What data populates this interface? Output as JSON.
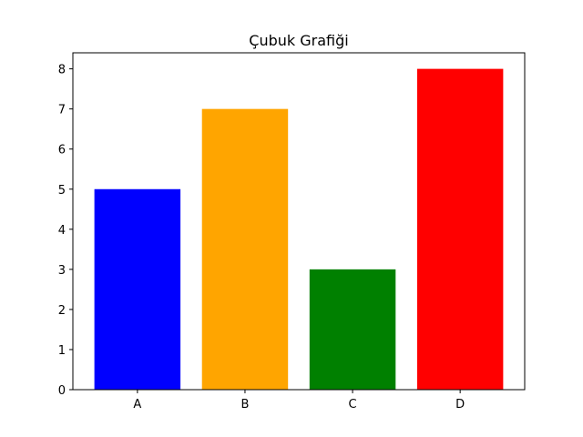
{
  "chart_data": {
    "type": "bar",
    "title": "Çubuk Grafiği",
    "xlabel": "",
    "ylabel": "",
    "categories": [
      "A",
      "B",
      "C",
      "D"
    ],
    "values": [
      5,
      7,
      3,
      8
    ],
    "colors": [
      "#0000ff",
      "#ffa500",
      "#008000",
      "#ff0000"
    ],
    "ylim": [
      0,
      8.4
    ],
    "yticks": [
      0,
      1,
      2,
      3,
      4,
      5,
      6,
      7,
      8
    ],
    "grid": false,
    "legend": "none"
  }
}
